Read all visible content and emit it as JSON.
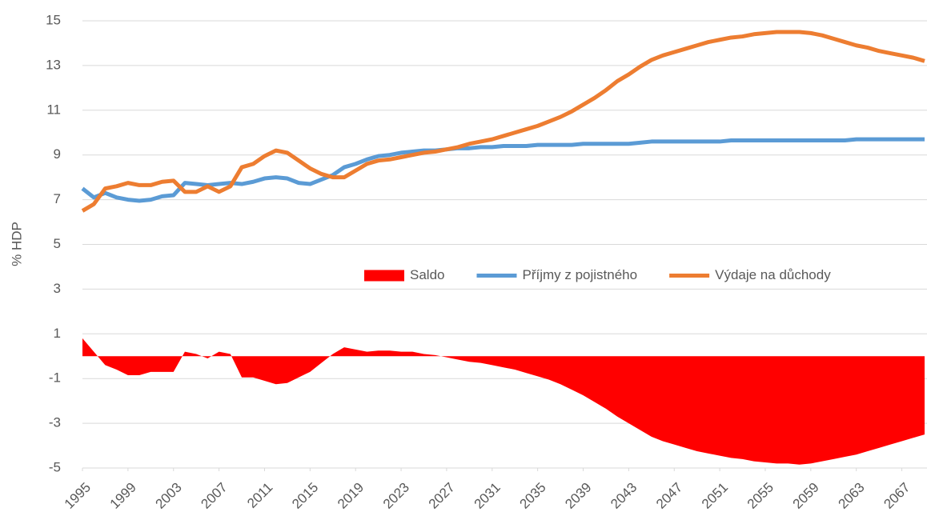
{
  "chart_data": {
    "type": "combo",
    "y_label": "% HDP",
    "x": [
      1995,
      1996,
      1997,
      1998,
      1999,
      2000,
      2001,
      2002,
      2003,
      2004,
      2005,
      2006,
      2007,
      2008,
      2009,
      2010,
      2011,
      2012,
      2013,
      2014,
      2015,
      2016,
      2017,
      2018,
      2019,
      2020,
      2021,
      2022,
      2023,
      2024,
      2025,
      2026,
      2027,
      2028,
      2029,
      2030,
      2031,
      2032,
      2033,
      2034,
      2035,
      2036,
      2037,
      2038,
      2039,
      2040,
      2041,
      2042,
      2043,
      2044,
      2045,
      2046,
      2047,
      2048,
      2049,
      2050,
      2051,
      2052,
      2053,
      2054,
      2055,
      2056,
      2057,
      2058,
      2059,
      2060,
      2061,
      2062,
      2063,
      2064,
      2065,
      2066,
      2067,
      2068,
      2069
    ],
    "xlim": [
      1995,
      2069
    ],
    "xticks": [
      1995,
      1999,
      2003,
      2007,
      2011,
      2015,
      2019,
      2023,
      2027,
      2031,
      2035,
      2039,
      2043,
      2047,
      2051,
      2055,
      2059,
      2063,
      2067
    ],
    "ylim": [
      -5,
      15
    ],
    "yticks": [
      -5,
      -3,
      -1,
      1,
      3,
      5,
      7,
      9,
      11,
      13,
      15
    ],
    "grid": true,
    "legend": "center",
    "series": [
      {
        "name": "Saldo",
        "type": "area",
        "color": "#ff0000",
        "values": [
          0.8,
          0.2,
          -0.4,
          -0.6,
          -0.85,
          -0.85,
          -0.7,
          -0.7,
          -0.7,
          0.2,
          0.1,
          -0.1,
          0.2,
          0.1,
          -0.95,
          -0.95,
          -1.1,
          -1.25,
          -1.2,
          -0.95,
          -0.7,
          -0.3,
          0.1,
          0.4,
          0.3,
          0.2,
          0.25,
          0.25,
          0.2,
          0.2,
          0.1,
          0.05,
          -0.05,
          -0.15,
          -0.25,
          -0.3,
          -0.4,
          -0.5,
          -0.6,
          -0.75,
          -0.9,
          -1.05,
          -1.25,
          -1.5,
          -1.75,
          -2.05,
          -2.35,
          -2.7,
          -3.0,
          -3.3,
          -3.6,
          -3.8,
          -3.95,
          -4.1,
          -4.25,
          -4.35,
          -4.45,
          -4.55,
          -4.6,
          -4.7,
          -4.75,
          -4.8,
          -4.8,
          -4.85,
          -4.8,
          -4.7,
          -4.6,
          -4.5,
          -4.4,
          -4.25,
          -4.1,
          -3.95,
          -3.8,
          -3.65,
          -3.5
        ]
      },
      {
        "name": "Příjmy z pojistného",
        "type": "line",
        "color": "#5b9bd5",
        "values": [
          7.5,
          7.1,
          7.3,
          7.1,
          7.0,
          6.95,
          7.0,
          7.15,
          7.2,
          7.75,
          7.7,
          7.65,
          7.7,
          7.75,
          7.7,
          7.8,
          7.95,
          8.0,
          7.95,
          7.75,
          7.7,
          7.9,
          8.1,
          8.45,
          8.6,
          8.8,
          8.95,
          9.0,
          9.1,
          9.15,
          9.2,
          9.2,
          9.25,
          9.3,
          9.3,
          9.35,
          9.35,
          9.4,
          9.4,
          9.4,
          9.45,
          9.45,
          9.45,
          9.45,
          9.5,
          9.5,
          9.5,
          9.5,
          9.5,
          9.55,
          9.6,
          9.6,
          9.6,
          9.6,
          9.6,
          9.6,
          9.6,
          9.65,
          9.65,
          9.65,
          9.65,
          9.65,
          9.65,
          9.65,
          9.65,
          9.65,
          9.65,
          9.65,
          9.7,
          9.7,
          9.7,
          9.7,
          9.7,
          9.7,
          9.7
        ]
      },
      {
        "name": "Výdaje na důchody",
        "type": "line",
        "color": "#ed7d31",
        "values": [
          6.5,
          6.8,
          7.5,
          7.6,
          7.75,
          7.65,
          7.65,
          7.8,
          7.85,
          7.35,
          7.35,
          7.6,
          7.35,
          7.6,
          8.45,
          8.6,
          8.95,
          9.2,
          9.1,
          8.75,
          8.4,
          8.15,
          8.0,
          8.0,
          8.3,
          8.6,
          8.75,
          8.8,
          8.9,
          9.0,
          9.1,
          9.15,
          9.25,
          9.35,
          9.5,
          9.6,
          9.7,
          9.85,
          10.0,
          10.15,
          10.3,
          10.5,
          10.7,
          10.95,
          11.25,
          11.55,
          11.9,
          12.3,
          12.6,
          12.95,
          13.25,
          13.45,
          13.6,
          13.75,
          13.9,
          14.05,
          14.15,
          14.25,
          14.3,
          14.4,
          14.45,
          14.5,
          14.5,
          14.5,
          14.45,
          14.35,
          14.2,
          14.05,
          13.9,
          13.8,
          13.65,
          13.55,
          13.45,
          13.35,
          13.2
        ]
      }
    ]
  }
}
